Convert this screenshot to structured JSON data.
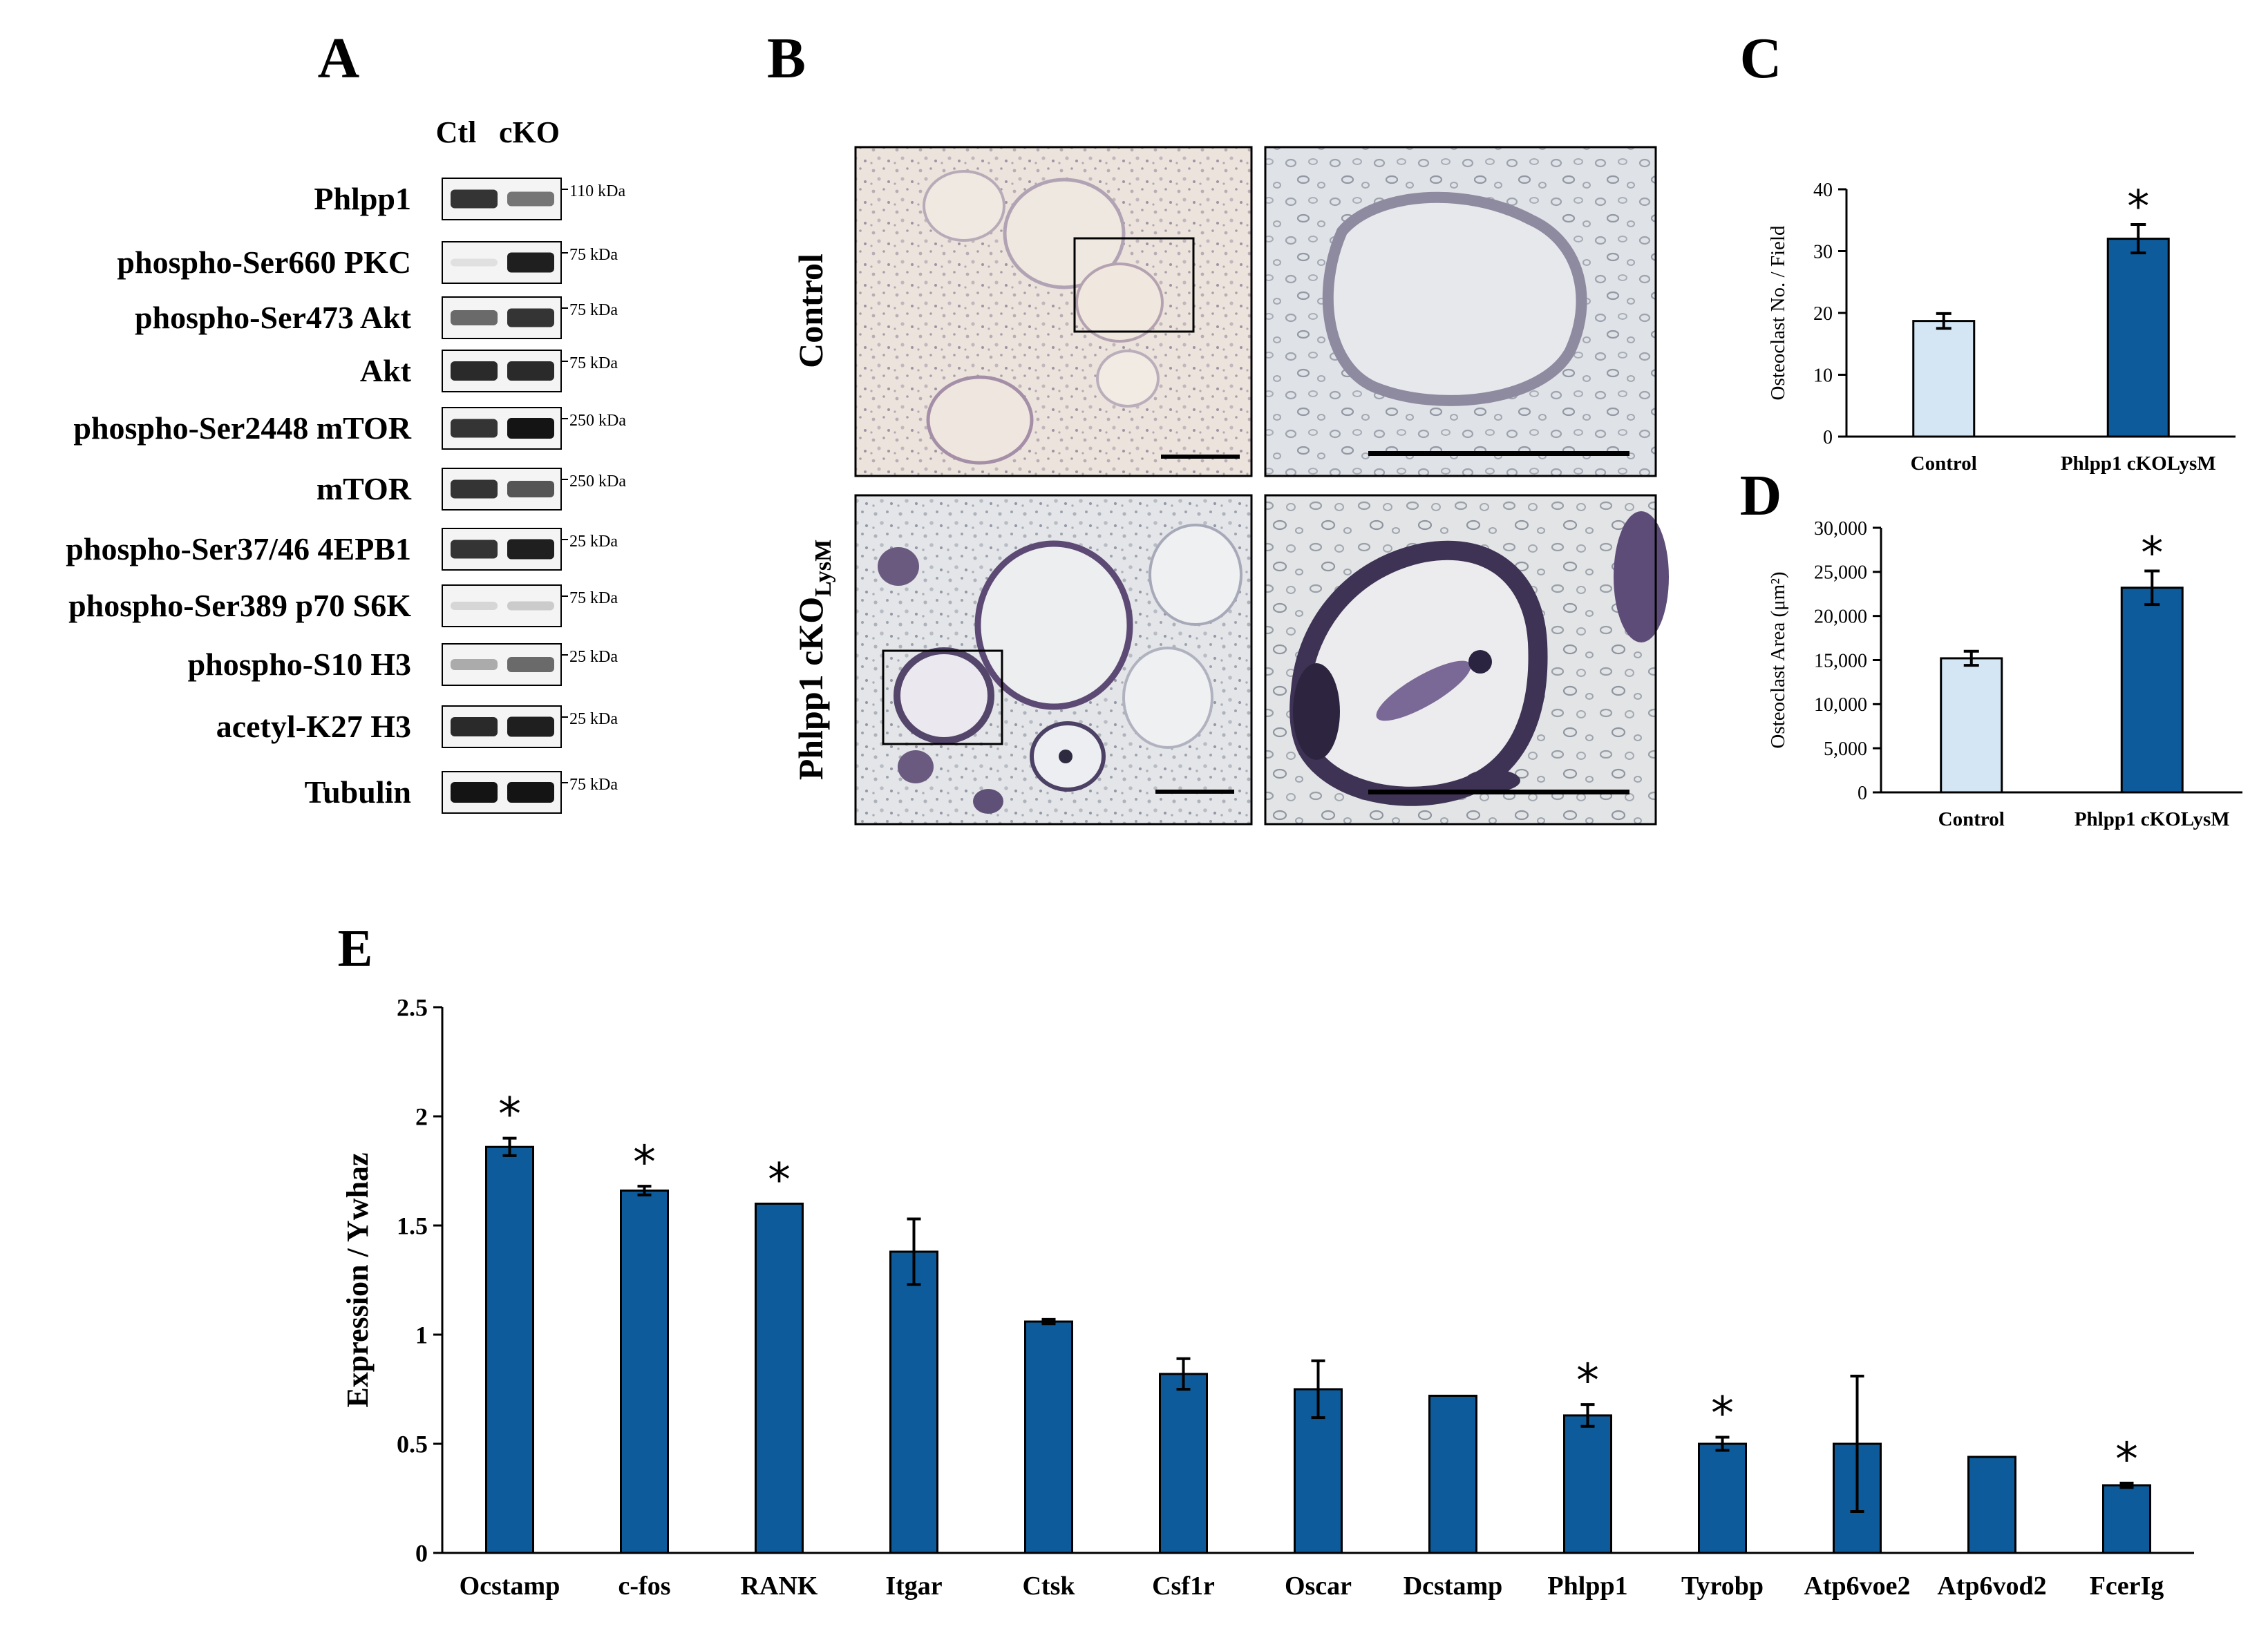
{
  "panel_letters": {
    "a": "A",
    "b": "B",
    "c": "C",
    "d": "D",
    "e": "E"
  },
  "colors": {
    "bar_dark": "#0d5b9a",
    "bar_light": "#d4e6f4",
    "blot_dark": "#1a1a1a"
  },
  "panel_a": {
    "lane_labels": [
      "Ctl",
      "cKO"
    ],
    "blots": [
      {
        "label": "Phlpp1",
        "marker": "110 kDa",
        "ctl": 0.85,
        "cko": 0.55
      },
      {
        "label": "phospho-Ser660 PKC",
        "marker": "75 kDa",
        "ctl": 0.05,
        "cko": 0.95
      },
      {
        "label": "phospho-Ser473 Akt",
        "marker": "75 kDa",
        "ctl": 0.6,
        "cko": 0.85
      },
      {
        "label": "Akt",
        "marker": "75 kDa",
        "ctl": 0.9,
        "cko": 0.9
      },
      {
        "label": "phospho-Ser2448 mTOR",
        "marker": "250 kDa",
        "ctl": 0.85,
        "cko": 1.0
      },
      {
        "label": "mTOR",
        "marker": "250 kDa",
        "ctl": 0.85,
        "cko": 0.7
      },
      {
        "label": "phospho-Ser37/46 4EPB1",
        "marker": "25 kDa",
        "ctl": 0.85,
        "cko": 0.95
      },
      {
        "label": "phospho-Ser389 p70 S6K",
        "marker": "75 kDa",
        "ctl": 0.1,
        "cko": 0.15
      },
      {
        "label": "phospho-S10 H3",
        "marker": "25 kDa",
        "ctl": 0.3,
        "cko": 0.6
      },
      {
        "label": "acetyl-K27 H3",
        "marker": "25 kDa",
        "ctl": 0.9,
        "cko": 0.95
      },
      {
        "label": "Tubulin",
        "marker": "75 kDa",
        "ctl": 1.0,
        "cko": 1.0
      }
    ]
  },
  "panel_b": {
    "row_labels": {
      "control": "Control",
      "cko_main": "Phlpp1 cKO",
      "cko_sub": "LysM"
    }
  },
  "chart_data": [
    {
      "id": "C",
      "type": "bar",
      "categories": [
        "Control",
        "Phlpp1 cKOLysM"
      ],
      "values": [
        18.7,
        32.0
      ],
      "errors": [
        1.2,
        2.3
      ],
      "significance": [
        "",
        "*"
      ],
      "ylabel": "Osteoclast No. / Field",
      "ylim": [
        0,
        40
      ],
      "yticks": [
        0,
        10,
        20,
        30,
        40
      ],
      "ytick_labels": [
        "0",
        "10",
        "20",
        "30",
        "40"
      ]
    },
    {
      "id": "D",
      "type": "bar",
      "categories": [
        "Control",
        "Phlpp1 cKOLysM"
      ],
      "values": [
        15200,
        23200
      ],
      "errors": [
        800,
        1900
      ],
      "significance": [
        "",
        "*"
      ],
      "ylabel": "Osteoclast Area (μm²)",
      "ylim": [
        0,
        30000
      ],
      "yticks": [
        0,
        5000,
        10000,
        15000,
        20000,
        25000,
        30000
      ],
      "ytick_labels": [
        "0",
        "5,000",
        "10,000",
        "15,000",
        "20,000",
        "25,000",
        "30,000"
      ]
    },
    {
      "id": "E",
      "type": "bar",
      "categories": [
        "Ocstamp",
        "c-fos",
        "RANK",
        "Itgar",
        "Ctsk",
        "Csf1r",
        "Oscar",
        "Dcstamp",
        "Phlpp1",
        "Tyrobp",
        "Atp6voe2",
        "Atp6vod2",
        "FcerIg"
      ],
      "values": [
        1.86,
        1.66,
        1.6,
        1.38,
        1.06,
        0.82,
        0.75,
        0.72,
        0.63,
        0.5,
        0.5,
        0.44,
        0.31
      ],
      "errors": [
        0.04,
        0.02,
        0.0,
        0.15,
        0.01,
        0.07,
        0.13,
        0.0,
        0.05,
        0.03,
        0.31,
        0.0,
        0.01
      ],
      "significance": [
        "*",
        "*",
        "*",
        "",
        "",
        "",
        "",
        "",
        "*",
        "*",
        "",
        "",
        "*"
      ],
      "ylabel": "Expression / Ywhaz",
      "ylim": [
        0,
        2.5
      ],
      "yticks": [
        0,
        0.5,
        1,
        1.5,
        2,
        2.5
      ],
      "ytick_labels": [
        "0",
        "0.5",
        "1",
        "1.5",
        "2",
        "2.5"
      ]
    }
  ]
}
